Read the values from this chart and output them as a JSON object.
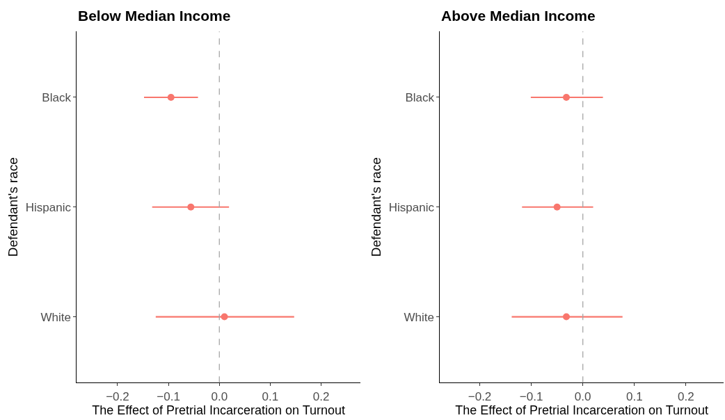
{
  "chart_data": [
    {
      "type": "scatter",
      "orientation": "horizontal",
      "title": "Below Median Income",
      "xlabel": "The Effect of Pretrial Incarceration on Turnout",
      "ylabel": "Defendant's race",
      "categories": [
        "Black",
        "Hispanic",
        "White"
      ],
      "series": [
        {
          "color": "#f8766d",
          "values": [
            -0.095,
            -0.056,
            0.01
          ],
          "errors": [
            [
              -0.148,
              -0.042
            ],
            [
              -0.132,
              0.019
            ],
            [
              -0.125,
              0.147
            ]
          ]
        }
      ],
      "xlim": [
        -0.28,
        0.277
      ],
      "xticks": [
        {
          "value": -0.2,
          "label": "−0.2"
        },
        {
          "value": -0.1,
          "label": "−0.1"
        },
        {
          "value": 0.0,
          "label": "0.0"
        },
        {
          "value": 0.1,
          "label": "0.1"
        },
        {
          "value": 0.2,
          "label": "0.2"
        }
      ],
      "ref_lines": [
        {
          "axis": "x",
          "value": 0,
          "color": "#a6a6a6",
          "line_style": "dashed"
        }
      ],
      "marker": "circle"
    },
    {
      "type": "scatter",
      "orientation": "horizontal",
      "title": "Above Median Income",
      "xlabel": "The Effect of Pretrial Incarceration on Turnout",
      "ylabel": "Defendant's race",
      "categories": [
        "Black",
        "Hispanic",
        "White"
      ],
      "series": [
        {
          "color": "#f8766d",
          "values": [
            -0.032,
            -0.05,
            -0.032
          ],
          "errors": [
            [
              -0.101,
              0.039
            ],
            [
              -0.118,
              0.02
            ],
            [
              -0.138,
              0.077
            ]
          ]
        }
      ],
      "xlim": [
        -0.277,
        0.273
      ],
      "xticks": [
        {
          "value": -0.2,
          "label": "−0.2"
        },
        {
          "value": -0.1,
          "label": "−0.1"
        },
        {
          "value": 0.0,
          "label": "0.0"
        },
        {
          "value": 0.1,
          "label": "0.1"
        },
        {
          "value": 0.2,
          "label": "0.2"
        }
      ],
      "ref_lines": [
        {
          "axis": "x",
          "value": 0,
          "color": "#a6a6a6",
          "line_style": "dashed"
        }
      ],
      "marker": "circle"
    }
  ]
}
